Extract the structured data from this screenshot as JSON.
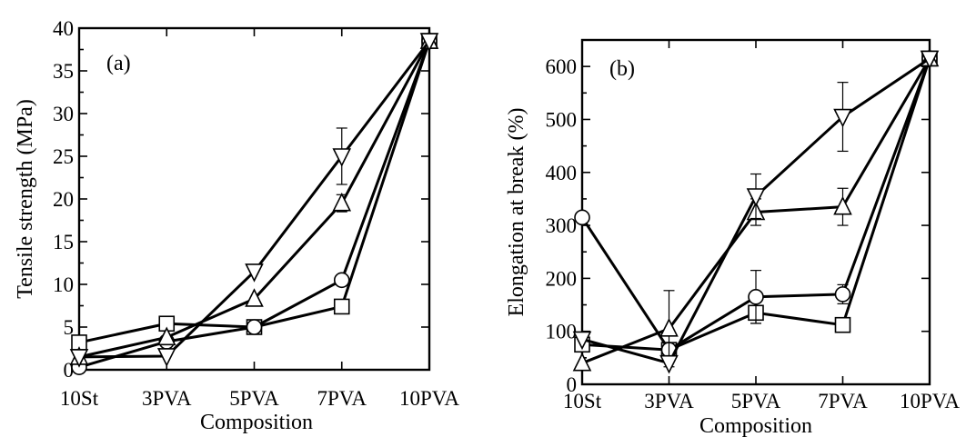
{
  "chart_data": [
    {
      "id": "a",
      "type": "line",
      "panel_label": "(a)",
      "xlabel": "Composition",
      "ylabel": "Tensile strength (MPa)",
      "categories": [
        "10St",
        "3PVA",
        "5PVA",
        "7PVA",
        "10PVA"
      ],
      "ylim": [
        0,
        40
      ],
      "yticks": [
        0,
        5,
        10,
        15,
        20,
        25,
        30,
        35,
        40
      ],
      "grid": false,
      "series": [
        {
          "marker": "square",
          "values": [
            3.2,
            5.4,
            5.0,
            7.4,
            38.5
          ],
          "errors": [
            0,
            0,
            0,
            0,
            0
          ]
        },
        {
          "marker": "circle",
          "values": [
            0.3,
            3.3,
            5.0,
            10.5,
            38.5
          ],
          "errors": [
            0,
            0,
            0,
            0,
            0
          ]
        },
        {
          "marker": "triangle-up",
          "values": [
            1.5,
            3.8,
            8.3,
            19.5,
            38.5
          ],
          "errors": [
            0,
            0,
            0,
            1.0,
            0
          ]
        },
        {
          "marker": "triangle-down",
          "values": [
            1.5,
            1.6,
            11.5,
            25.0,
            38.5
          ],
          "errors": [
            0,
            0,
            0,
            3.3,
            0
          ]
        }
      ]
    },
    {
      "id": "b",
      "type": "line",
      "panel_label": "(b)",
      "xlabel": "Composition",
      "ylabel": "Elongation at break (%)",
      "categories": [
        "10St",
        "3PVA",
        "5PVA",
        "7PVA",
        "10PVA"
      ],
      "ylim": [
        0,
        650
      ],
      "yticks": [
        0,
        100,
        200,
        300,
        400,
        500,
        600
      ],
      "grid": false,
      "series": [
        {
          "marker": "square",
          "values": [
            75,
            65,
            135,
            112,
            615
          ],
          "errors": [
            0,
            0,
            20,
            0,
            0
          ]
        },
        {
          "marker": "circle",
          "values": [
            315,
            65,
            165,
            170,
            615
          ],
          "errors": [
            0,
            0,
            50,
            18,
            0
          ]
        },
        {
          "marker": "triangle-up",
          "values": [
            40,
            105,
            325,
            335,
            615
          ],
          "errors": [
            0,
            72,
            25,
            35,
            0
          ]
        },
        {
          "marker": "triangle-down",
          "values": [
            85,
            40,
            355,
            505,
            615
          ],
          "errors": [
            0,
            0,
            42,
            65,
            0
          ]
        }
      ]
    }
  ]
}
